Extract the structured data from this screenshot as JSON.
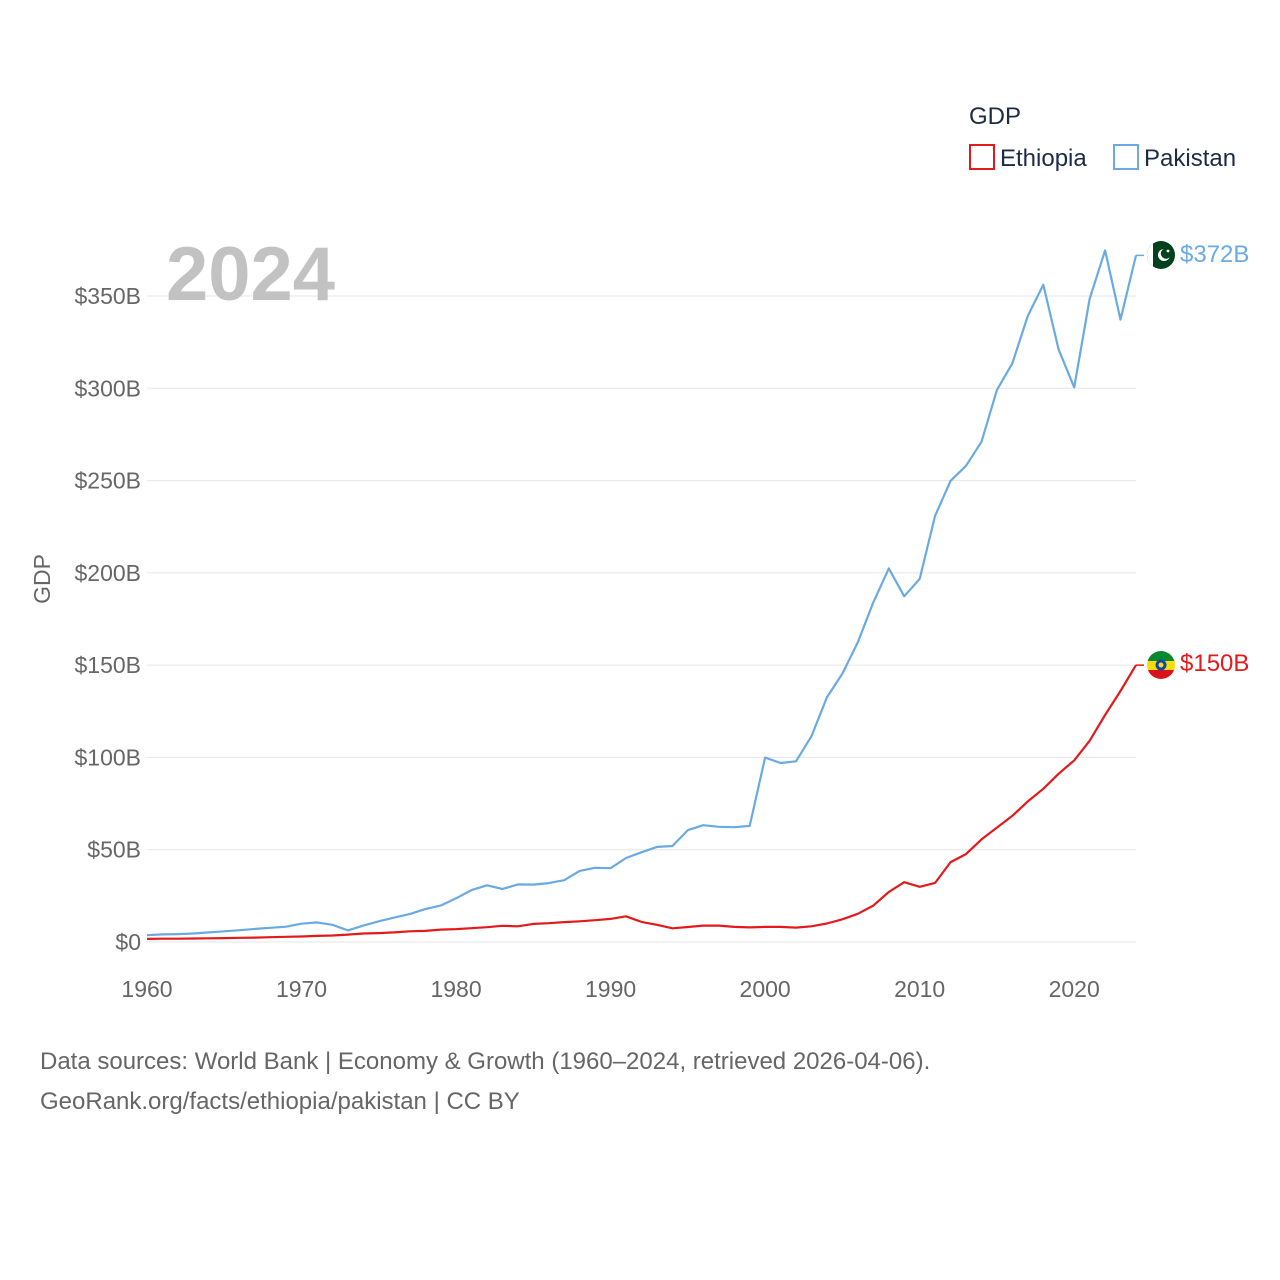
{
  "chart_data": {
    "type": "line",
    "ylabel": "GDP",
    "year_label": "2024",
    "legend_title": "GDP",
    "ylim": [
      0,
      385
    ],
    "xlim": [
      1960,
      2024
    ],
    "y_ticks": [
      {
        "value": 0,
        "label": "$0"
      },
      {
        "value": 50,
        "label": "$50B"
      },
      {
        "value": 100,
        "label": "$100B"
      },
      {
        "value": 150,
        "label": "$150B"
      },
      {
        "value": 200,
        "label": "$200B"
      },
      {
        "value": 250,
        "label": "$250B"
      },
      {
        "value": 300,
        "label": "$300B"
      },
      {
        "value": 350,
        "label": "$350B"
      }
    ],
    "x_ticks": [
      {
        "value": 1960,
        "label": "1960"
      },
      {
        "value": 1970,
        "label": "1970"
      },
      {
        "value": 1980,
        "label": "1980"
      },
      {
        "value": 1990,
        "label": "1990"
      },
      {
        "value": 2000,
        "label": "2000"
      },
      {
        "value": 2010,
        "label": "2010"
      },
      {
        "value": 2020,
        "label": "2020"
      }
    ],
    "series": [
      {
        "name": "Ethiopia",
        "color": "#e31a1c",
        "end_label": "$150B",
        "x": [
          1960,
          1961,
          1962,
          1963,
          1964,
          1965,
          1966,
          1967,
          1968,
          1969,
          1970,
          1971,
          1972,
          1973,
          1974,
          1975,
          1976,
          1977,
          1978,
          1979,
          1980,
          1981,
          1982,
          1983,
          1984,
          1985,
          1986,
          1987,
          1988,
          1989,
          1990,
          1991,
          1992,
          1993,
          1994,
          1995,
          1996,
          1997,
          1998,
          1999,
          2000,
          2001,
          2002,
          2003,
          2004,
          2005,
          2006,
          2007,
          2008,
          2009,
          2010,
          2011,
          2012,
          2013,
          2014,
          2015,
          2016,
          2017,
          2018,
          2019,
          2020,
          2021,
          2022,
          2023,
          2024
        ],
        "values": [
          1.7,
          1.8,
          1.8,
          1.9,
          2.0,
          2.1,
          2.3,
          2.4,
          2.6,
          2.8,
          3.0,
          3.3,
          3.5,
          4.0,
          4.6,
          4.8,
          5.2,
          5.8,
          6.0,
          6.7,
          7.0,
          7.5,
          8.0,
          8.8,
          8.5,
          9.8,
          10.2,
          10.8,
          11.2,
          11.8,
          12.5,
          13.9,
          10.9,
          9.3,
          7.4,
          8.1,
          8.9,
          8.9,
          8.2,
          7.9,
          8.2,
          8.2,
          7.8,
          8.5,
          10.0,
          12.3,
          15.3,
          19.7,
          27.1,
          32.4,
          29.9,
          32.0,
          43.3,
          47.6,
          55.6,
          62.0,
          68.4,
          76.2,
          83.0,
          91.2,
          98.4,
          109.0,
          123.0,
          136.0,
          150.0
        ]
      },
      {
        "name": "Pakistan",
        "color": "#6aaae3",
        "end_label": "$372B",
        "x": [
          1960,
          1961,
          1962,
          1963,
          1964,
          1965,
          1966,
          1967,
          1968,
          1969,
          1970,
          1971,
          1972,
          1973,
          1974,
          1975,
          1976,
          1977,
          1978,
          1979,
          1980,
          1981,
          1982,
          1983,
          1984,
          1985,
          1986,
          1987,
          1988,
          1989,
          1990,
          1991,
          1992,
          1993,
          1994,
          1995,
          1996,
          1997,
          1998,
          1999,
          2000,
          2001,
          2002,
          2003,
          2004,
          2005,
          2006,
          2007,
          2008,
          2009,
          2010,
          2011,
          2012,
          2013,
          2014,
          2015,
          2016,
          2017,
          2018,
          2019,
          2020,
          2021,
          2022,
          2023,
          2024
        ],
        "values": [
          3.7,
          4.1,
          4.3,
          4.6,
          5.2,
          5.8,
          6.4,
          7.1,
          7.7,
          8.3,
          9.9,
          10.6,
          9.3,
          6.3,
          8.9,
          11.2,
          13.2,
          15.1,
          17.8,
          19.7,
          23.7,
          28.1,
          30.7,
          28.7,
          31.2,
          31.1,
          31.9,
          33.5,
          38.5,
          40.2,
          40.0,
          45.5,
          48.6,
          51.5,
          52.0,
          60.6,
          63.3,
          62.4,
          62.2,
          62.9,
          99.9,
          97.0,
          97.9,
          111.5,
          132.5,
          145.4,
          162.4,
          184.0,
          202.4,
          187.3,
          196.7,
          230.9,
          249.9,
          258.0,
          271.0,
          299.0,
          313.6,
          339.2,
          356.1,
          320.9,
          300.4,
          348.3,
          374.7,
          337.2,
          372.0
        ]
      }
    ]
  },
  "footer": {
    "line1": "Data sources: World Bank | Economy & Growth (1960–2024, retrieved 2026-04-06).",
    "line2": "GeoRank.org/facts/ethiopia/pakistan | CC BY"
  }
}
